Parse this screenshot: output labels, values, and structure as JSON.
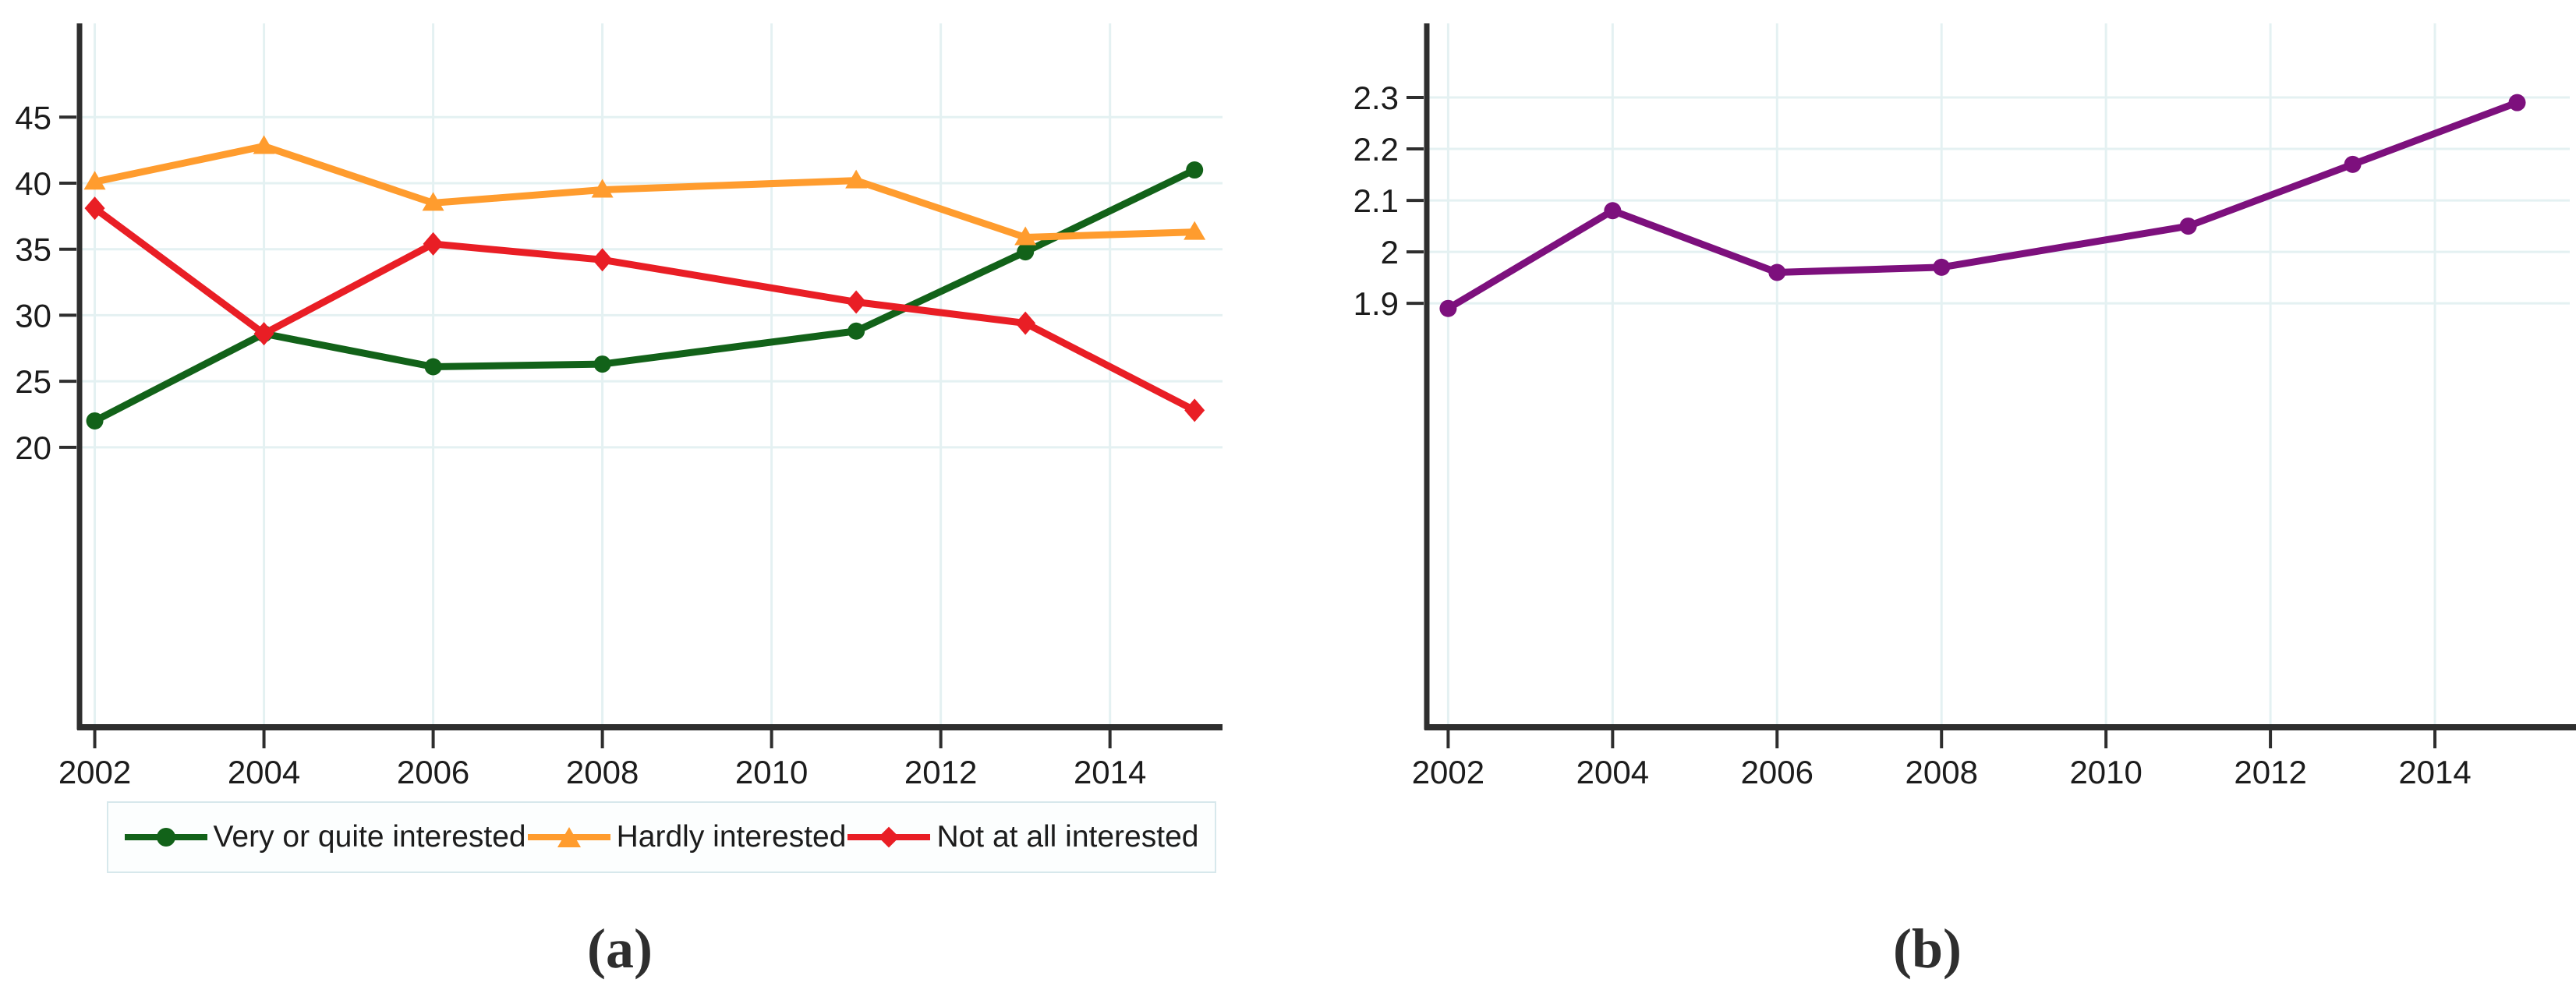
{
  "figure": {
    "description": "Two side-by-side line charts over survey years",
    "background": "#ffffff"
  },
  "colors": {
    "grid": "#e4f1f2",
    "axis": "#2e2e2e",
    "tick_label": "#1c1c1c",
    "legend_border": "#d7e8ec",
    "legend_background": "#fcfefe"
  },
  "chart_data": [
    {
      "type": "line",
      "title": "",
      "xlabel": "",
      "ylabel": "",
      "caption": "(a)",
      "x": [
        2002,
        2004,
        2006,
        2008,
        2011,
        2013,
        2015
      ],
      "series": [
        {
          "name": "Very or quite interested",
          "color": "#126219",
          "marker": "circle",
          "values": [
            22.0,
            28.6,
            26.1,
            26.3,
            28.8,
            34.8,
            41.0
          ]
        },
        {
          "name": "Hardly interested",
          "color": "#ff9c2e",
          "marker": "triangle",
          "values": [
            40.1,
            42.8,
            38.5,
            39.5,
            40.2,
            35.9,
            36.3
          ]
        },
        {
          "name": "Not at all interested",
          "color": "#e91e25",
          "marker": "diamond",
          "values": [
            38.1,
            28.6,
            35.4,
            34.2,
            31.0,
            29.4,
            22.8
          ]
        }
      ],
      "xticks": [
        2002,
        2004,
        2006,
        2008,
        2010,
        2012,
        2014
      ],
      "xtick_labels": [
        "2002",
        "2004",
        "2006",
        "2008",
        "2010",
        "2012",
        "2014"
      ],
      "yticks": [
        20,
        25,
        30,
        35,
        40,
        45
      ],
      "ytick_labels": [
        "20",
        "25",
        "30",
        "35",
        "40",
        "45"
      ],
      "xlim": [
        2001.82,
        2015.33
      ],
      "ylim": [
        -1.2,
        52.1
      ],
      "grid": true,
      "legend_position": "bottom"
    },
    {
      "type": "line",
      "title": "",
      "xlabel": "",
      "ylabel": "",
      "caption": "(b)",
      "x": [
        2002,
        2004,
        2006,
        2008,
        2011,
        2013,
        2015
      ],
      "series": [
        {
          "name": "",
          "color": "#7d107d",
          "marker": "circle",
          "values": [
            1.89,
            2.08,
            1.96,
            1.97,
            2.05,
            2.17,
            2.29
          ]
        }
      ],
      "xticks": [
        2002,
        2004,
        2006,
        2008,
        2010,
        2012,
        2014
      ],
      "xtick_labels": [
        "2002",
        "2004",
        "2006",
        "2008",
        "2010",
        "2012",
        "2014"
      ],
      "yticks": [
        1.9,
        2.0,
        2.1,
        2.2,
        2.3
      ],
      "ytick_labels": [
        "1.9",
        "2",
        "2.1",
        "2.2",
        "2.3"
      ],
      "xlim": [
        2001.74,
        2015.64
      ],
      "ylim": [
        1.076,
        2.444
      ],
      "grid": true,
      "legend_position": "none"
    }
  ]
}
